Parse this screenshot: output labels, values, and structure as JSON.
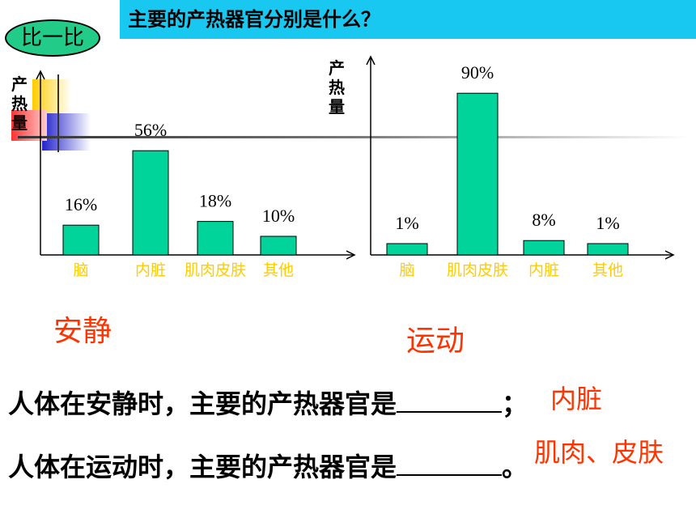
{
  "slide": {
    "title": "主要的产热器官分别是什么？",
    "badge": "比一比",
    "ylabel": "产热量"
  },
  "chart_data": [
    {
      "type": "bar",
      "categories": [
        "脑",
        "内脏",
        "肌肉皮肤",
        "其他"
      ],
      "values": [
        16,
        56,
        18,
        10
      ],
      "data_labels": [
        "16%",
        "56%",
        "18%",
        "10%"
      ],
      "ylabel": "产热量",
      "caption": "安静",
      "ylim": [
        0,
        100
      ]
    },
    {
      "type": "bar",
      "categories": [
        "脑",
        "肌肉皮肤",
        "内脏",
        "其他"
      ],
      "values": [
        1,
        90,
        8,
        1
      ],
      "data_labels": [
        "1%",
        "90%",
        "8%",
        "1%"
      ],
      "ylabel": "产热量",
      "caption": "运动",
      "ylim": [
        0,
        100
      ]
    }
  ],
  "sentences": [
    {
      "text_before": "人体在安静时，主要的产热器官是",
      "text_after": "；",
      "answer": "内脏"
    },
    {
      "text_before": "人体在运动时，主要的产热器官是",
      "text_after": "。",
      "answer": "肌肉、皮肤"
    }
  ],
  "colors": {
    "bar": "#00d49a",
    "title_bar": "#19c8f0",
    "badge": "#22cc88",
    "category_label": "#ffcc00",
    "caption": "#ff3300"
  }
}
